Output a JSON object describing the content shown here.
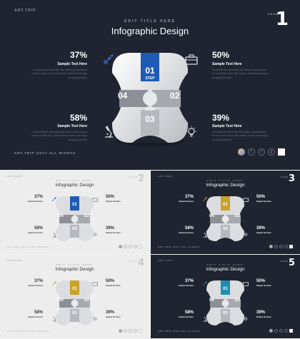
{
  "brand": "ART.TRIP",
  "edit_title": "EDIT TITLE HERE",
  "title": "Infographic Design",
  "page_label": "PAGE",
  "footer": "ART.TRIP |2017.ALL RIGHTS",
  "sample_title": "Sample Text Here",
  "sample_desc": "A wonderful serenity has taken possession of my entire soul, like these sweet mornings of spring which",
  "step_label": "STEP",
  "stats": {
    "tl": "37%",
    "tr": "50%",
    "bl": "58%",
    "br": "39%"
  },
  "steps": {
    "s1": "01",
    "s2": "02",
    "s3": "03",
    "s4": "04"
  },
  "icons": [
    "rocket-icon",
    "briefcase-icon",
    "microscope-icon",
    "lightbulb-icon",
    "twitter-icon",
    "facebook-icon",
    "pinterest-icon"
  ],
  "social": {
    "tw": "t",
    "fb": "f",
    "pi": "p"
  },
  "slides": [
    {
      "page": "1",
      "theme": "dark",
      "accent": "#1f5bb3"
    },
    {
      "page": "2",
      "theme": "light",
      "accent": "#1f5bb3"
    },
    {
      "page": "3",
      "theme": "dark",
      "accent": "#c9a227"
    },
    {
      "page": "4",
      "theme": "light",
      "accent": "#c9a227"
    },
    {
      "page": "5",
      "theme": "dark",
      "accent": "#1b8fb0"
    }
  ]
}
